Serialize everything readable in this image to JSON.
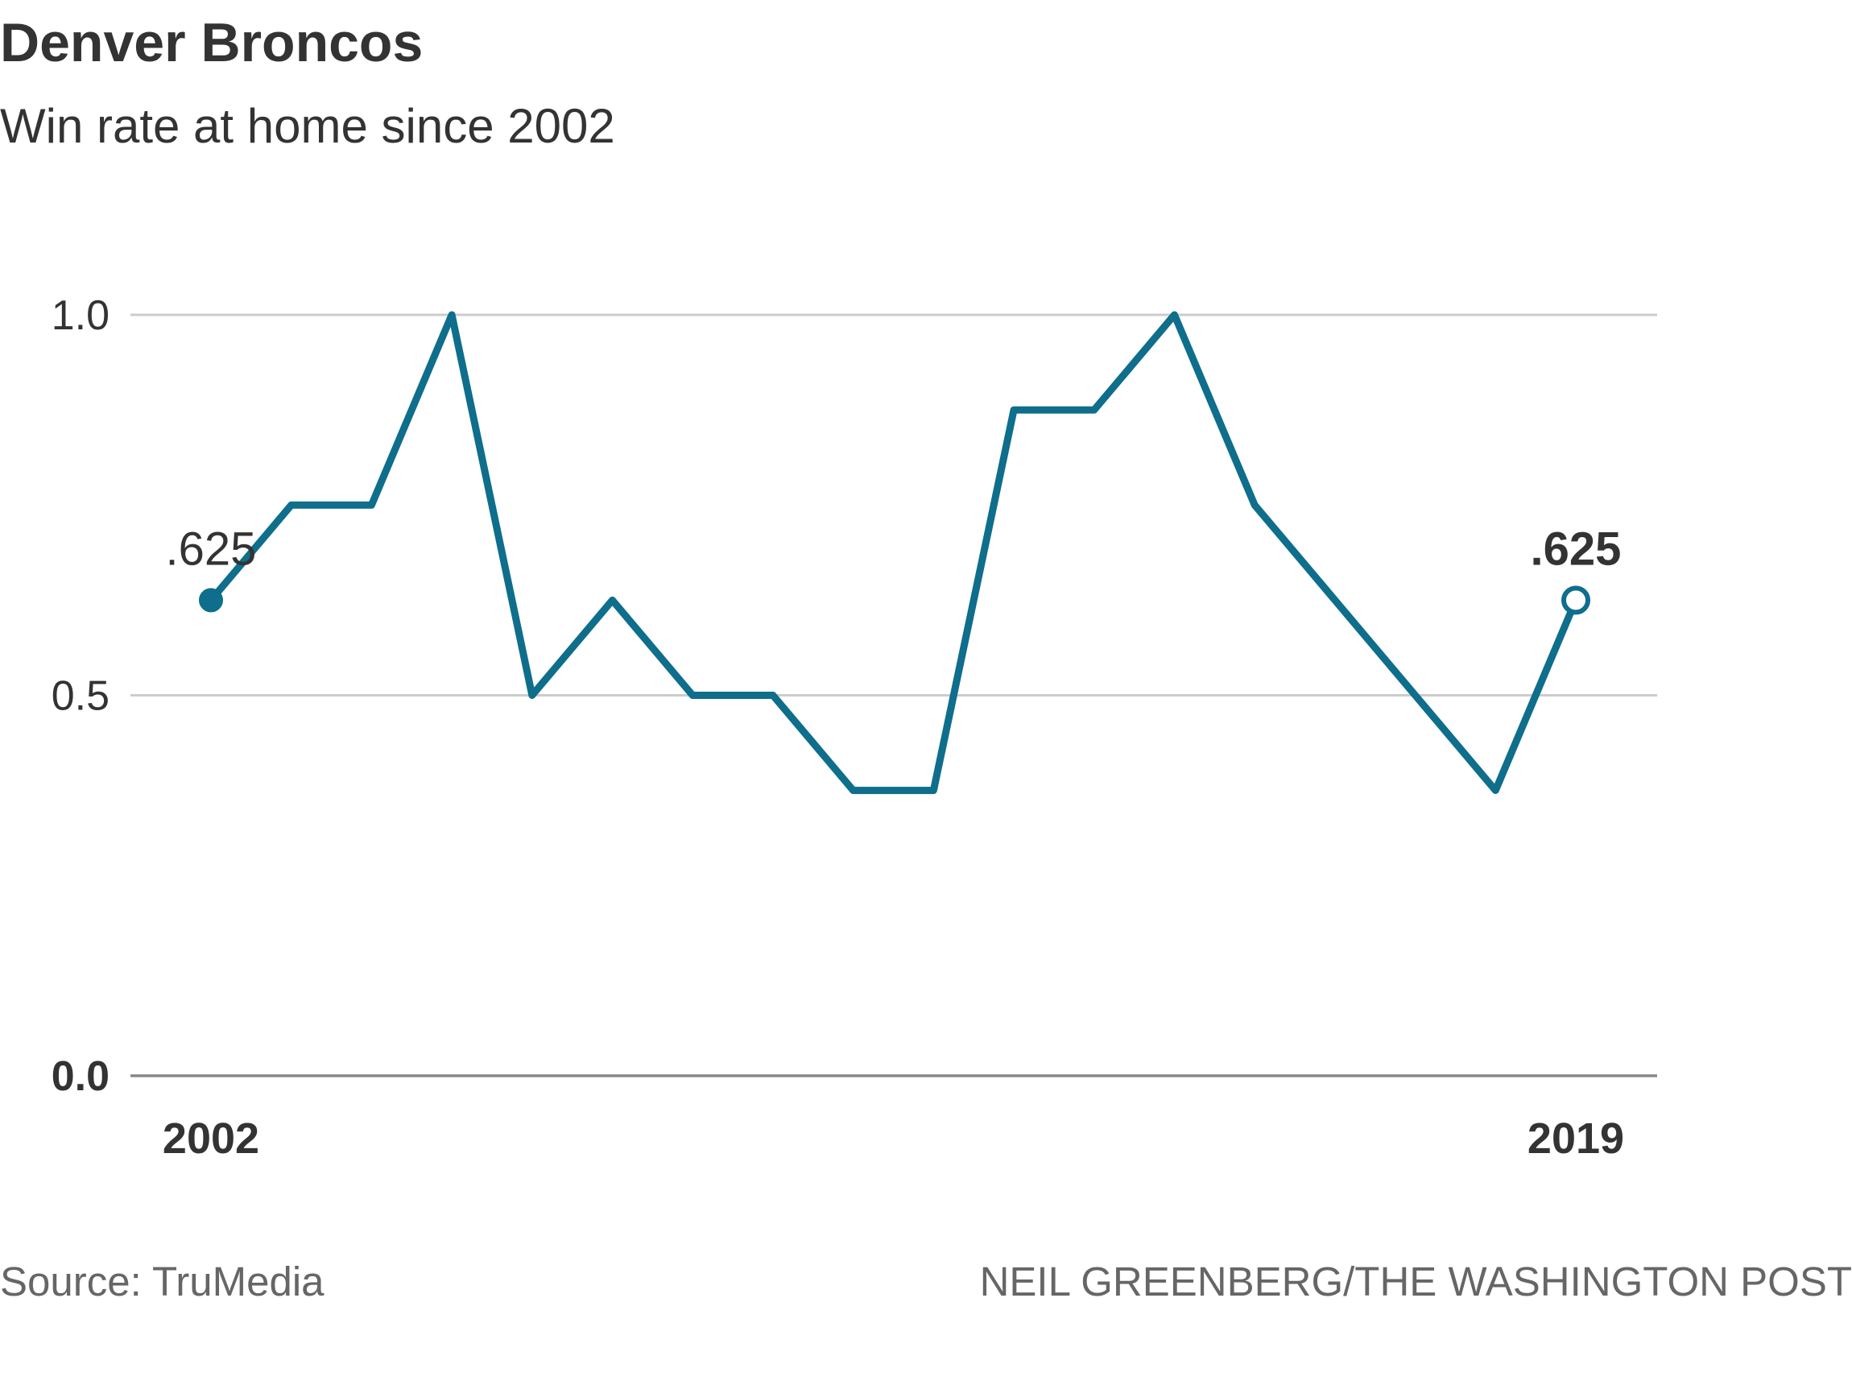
{
  "header": {
    "title": "Denver Broncos",
    "subtitle": "Win rate at home since 2002"
  },
  "footer": {
    "source": "Source: TruMedia",
    "credit": "NEIL GREENBERG/THE WASHINGTON POST"
  },
  "colors": {
    "line": "#0e6e8c",
    "grid": "#cccccc",
    "baseline": "#888888",
    "text": "#333333",
    "muted": "#666666"
  },
  "chart_data": {
    "type": "line",
    "title": "Denver Broncos",
    "subtitle": "Win rate at home since 2002",
    "x": [
      2002,
      2003,
      2004,
      2005,
      2006,
      2007,
      2008,
      2009,
      2010,
      2011,
      2012,
      2013,
      2014,
      2015,
      2016,
      2017,
      2018,
      2019
    ],
    "series": [
      {
        "values": [
          0.625,
          0.75,
          0.75,
          1.0,
          0.5,
          0.625,
          0.5,
          0.5,
          0.375,
          0.375,
          0.875,
          0.875,
          1.0,
          0.75,
          0.625,
          0.5,
          0.375,
          0.625
        ]
      }
    ],
    "ylim": [
      0,
      1.0
    ],
    "y_ticks": [
      {
        "value": 1.0,
        "label": "1.0",
        "bold": false
      },
      {
        "value": 0.5,
        "label": "0.5",
        "bold": false
      },
      {
        "value": 0.0,
        "label": "0.0",
        "bold": true
      }
    ],
    "x_tick_labels": [
      {
        "value": 2002,
        "label": "2002"
      },
      {
        "value": 2019,
        "label": "2019"
      }
    ],
    "annotations": [
      {
        "x": 2002,
        "y": 0.625,
        "label": ".625",
        "marker": "filled",
        "bold": false
      },
      {
        "x": 2019,
        "y": 0.625,
        "label": ".625",
        "marker": "hollow",
        "bold": true
      }
    ],
    "grid": true,
    "legend": "none"
  }
}
